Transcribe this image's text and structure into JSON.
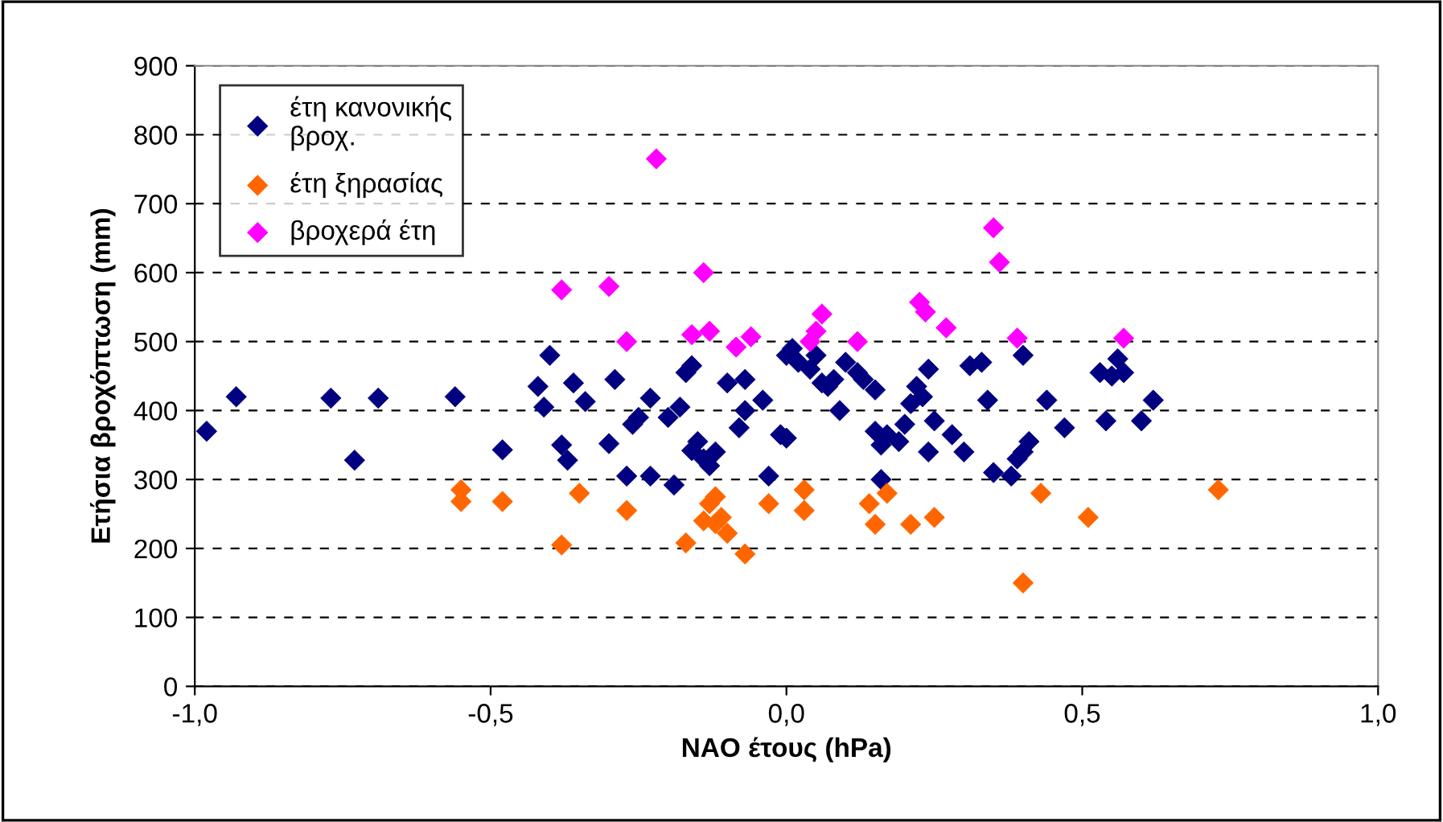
{
  "chart_data": {
    "type": "scatter",
    "xlabel": "NAO έτους (hPa)",
    "ylabel": "Ετήσια βροχόπτωση (mm)",
    "xlim": [
      -1.0,
      1.0
    ],
    "ylim": [
      0,
      900
    ],
    "xticks": [
      {
        "value": -1.0,
        "label": "-1,0"
      },
      {
        "value": -0.5,
        "label": "-0,5"
      },
      {
        "value": 0.0,
        "label": "0,0"
      },
      {
        "value": 0.5,
        "label": "0,5"
      },
      {
        "value": 1.0,
        "label": "1,0"
      }
    ],
    "yticks": [
      0,
      100,
      200,
      300,
      400,
      500,
      600,
      700,
      800,
      900
    ],
    "grid": "y",
    "legend": "top left",
    "marker": "diamond",
    "series": [
      {
        "name": "έτη κανονικής\nβροχ.",
        "color": "#000080",
        "x": [
          -0.98,
          -0.93,
          -0.77,
          -0.73,
          -0.69,
          -0.56,
          -0.48,
          -0.42,
          -0.41,
          -0.4,
          -0.38,
          -0.37,
          -0.36,
          -0.34,
          -0.3,
          -0.29,
          -0.27,
          -0.26,
          -0.25,
          -0.23,
          -0.23,
          -0.2,
          -0.19,
          -0.18,
          -0.17,
          -0.16,
          -0.16,
          -0.15,
          -0.14,
          -0.13,
          -0.12,
          -0.1,
          -0.08,
          -0.07,
          -0.07,
          -0.04,
          -0.03,
          -0.01,
          0.0,
          0.0,
          0.01,
          0.02,
          0.04,
          0.05,
          0.06,
          0.07,
          0.08,
          0.09,
          0.1,
          0.12,
          0.13,
          0.15,
          0.15,
          0.16,
          0.16,
          0.17,
          0.19,
          0.2,
          0.21,
          0.22,
          0.23,
          0.24,
          0.24,
          0.25,
          0.28,
          0.3,
          0.31,
          0.33,
          0.34,
          0.35,
          0.38,
          0.39,
          0.4,
          0.4,
          0.41,
          0.44,
          0.47,
          0.53,
          0.54,
          0.55,
          0.56,
          0.57,
          0.6,
          0.62
        ],
        "values": [
          370,
          420,
          418,
          328,
          418,
          420,
          343,
          435,
          405,
          480,
          350,
          328,
          440,
          413,
          352,
          445,
          305,
          380,
          390,
          418,
          305,
          390,
          292,
          405,
          455,
          465,
          342,
          355,
          330,
          320,
          340,
          440,
          375,
          400,
          445,
          415,
          305,
          365,
          360,
          480,
          490,
          470,
          460,
          480,
          440,
          435,
          445,
          400,
          470,
          455,
          445,
          430,
          370,
          300,
          350,
          365,
          355,
          380,
          410,
          435,
          420,
          460,
          340,
          385,
          365,
          340,
          465,
          470,
          415,
          310,
          305,
          330,
          480,
          340,
          355,
          415,
          375,
          455,
          385,
          450,
          475,
          455,
          385,
          415
        ]
      },
      {
        "name": "έτη ξηρασίας",
        "color": "#ff6600",
        "x": [
          -0.55,
          -0.55,
          -0.48,
          -0.38,
          -0.35,
          -0.27,
          -0.17,
          -0.14,
          -0.13,
          -0.12,
          -0.11,
          -0.12,
          -0.1,
          -0.07,
          -0.03,
          0.03,
          0.03,
          0.14,
          0.15,
          0.17,
          0.21,
          0.25,
          0.4,
          0.43,
          0.51,
          0.73
        ],
        "values": [
          285,
          268,
          268,
          205,
          280,
          255,
          208,
          240,
          265,
          275,
          245,
          236,
          222,
          192,
          265,
          285,
          255,
          265,
          235,
          280,
          235,
          245,
          150,
          280,
          245,
          285
        ]
      },
      {
        "name": "βροχερά έτη",
        "color": "#ff00ff",
        "x": [
          -0.38,
          -0.3,
          -0.27,
          -0.22,
          -0.16,
          -0.14,
          -0.13,
          -0.085,
          -0.06,
          0.04,
          0.05,
          0.06,
          0.12,
          0.235,
          0.225,
          0.27,
          0.35,
          0.36,
          0.39,
          0.57
        ],
        "values": [
          575,
          580,
          500,
          765,
          510,
          600,
          515,
          492,
          507,
          500,
          515,
          540,
          500,
          543,
          557,
          520,
          665,
          615,
          505,
          505
        ]
      }
    ]
  }
}
